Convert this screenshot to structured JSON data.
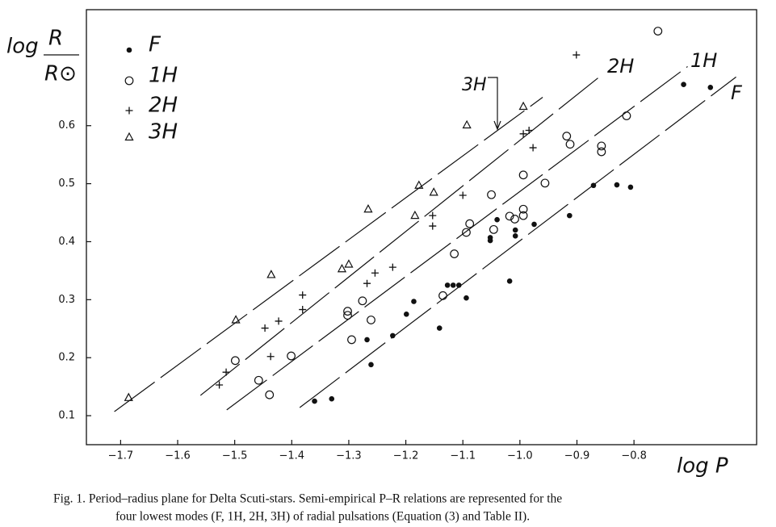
{
  "chart_data": {
    "type": "scatter",
    "xlabel": "log P",
    "ylabel": [
      "log",
      "R",
      "R⊙"
    ],
    "caption": [
      "Fig. 1.   Period–radius plane for Delta Scuti-stars. Semi-empirical P–R relations are represented for the",
      "four lowest modes (F, 1H, 2H, 3H) of radial pulsations (Equation (3) and Table II)."
    ],
    "annotation": "3H",
    "xlim": [
      -1.76,
      -0.585
    ],
    "ylim": [
      0.05,
      0.8
    ],
    "xticks": [
      {
        "value": -1.7,
        "label": "−1.7"
      },
      {
        "value": -1.6,
        "label": "−1.6"
      },
      {
        "value": -1.5,
        "label": "−1.5"
      },
      {
        "value": -1.4,
        "label": "−1.4"
      },
      {
        "value": -1.3,
        "label": "−1.3"
      },
      {
        "value": -1.2,
        "label": "−1.2"
      },
      {
        "value": -1.1,
        "label": "−1.1"
      },
      {
        "value": -1.0,
        "label": "−1.0"
      },
      {
        "value": -0.9,
        "label": "−0.9"
      },
      {
        "value": -0.8,
        "label": "−0.8"
      }
    ],
    "yticks": [
      0.1,
      0.2,
      0.3,
      0.4,
      0.5,
      0.6
    ],
    "grid": false,
    "legend": "upper left",
    "series": [
      {
        "name": "F",
        "color": "#111",
        "marker": "filled-circle",
        "x": [
          -1.36,
          -1.33,
          -1.268,
          -1.261,
          -1.223,
          -1.199,
          -1.186,
          -1.141,
          -1.127,
          -1.117,
          -1.107,
          -1.094,
          -1.052,
          -1.052,
          -1.04,
          -1.018,
          -1.008,
          -1.008,
          -0.975,
          -0.913,
          -0.871,
          -0.83,
          -0.806,
          -0.713,
          -0.666
        ],
        "values": [
          0.125,
          0.129,
          0.231,
          0.188,
          0.238,
          0.275,
          0.297,
          0.251,
          0.325,
          0.325,
          0.325,
          0.303,
          0.402,
          0.407,
          0.438,
          0.332,
          0.42,
          0.41,
          0.43,
          0.445,
          0.497,
          0.498,
          0.494,
          0.671,
          0.666
        ]
      },
      {
        "name": "1H",
        "color": "#111",
        "marker": "circle",
        "x": [
          -1.499,
          -1.458,
          -1.439,
          -1.401,
          -1.302,
          -1.302,
          -1.295,
          -1.276,
          -1.261,
          -1.135,
          -1.115,
          -1.094,
          -1.088,
          -1.05,
          -1.046,
          -1.018,
          -1.009,
          -0.994,
          -0.994,
          -0.994,
          -0.956,
          -0.918,
          -0.912,
          -0.857,
          -0.857,
          -0.813,
          -0.758
        ],
        "values": [
          0.195,
          0.161,
          0.136,
          0.203,
          0.28,
          0.273,
          0.231,
          0.298,
          0.265,
          0.307,
          0.379,
          0.416,
          0.431,
          0.481,
          0.421,
          0.444,
          0.439,
          0.456,
          0.445,
          0.515,
          0.501,
          0.582,
          0.568,
          0.565,
          0.555,
          0.617,
          0.763
        ]
      },
      {
        "name": "2H",
        "color": "#111",
        "marker": "plus",
        "x": [
          -1.527,
          -1.515,
          -1.447,
          -1.423,
          -1.437,
          -1.381,
          -1.381,
          -1.268,
          -1.254,
          -1.223,
          -1.153,
          -1.153,
          -1.1,
          -0.994,
          -0.984,
          -0.977,
          -0.901
        ],
        "values": [
          0.153,
          0.175,
          0.251,
          0.263,
          0.202,
          0.308,
          0.283,
          0.328,
          0.346,
          0.356,
          0.445,
          0.427,
          0.48,
          0.586,
          0.592,
          0.562,
          0.722
        ]
      },
      {
        "name": "3H",
        "color": "#111",
        "marker": "triangle",
        "x": [
          -1.686,
          -1.498,
          -1.436,
          -1.312,
          -1.3,
          -1.266,
          -1.184,
          -1.177,
          -1.151,
          -1.093,
          -0.994
        ],
        "values": [
          0.131,
          0.265,
          0.343,
          0.353,
          0.361,
          0.456,
          0.445,
          0.497,
          0.485,
          0.601,
          0.633
        ]
      }
    ],
    "fits": [
      {
        "label": "F",
        "x": [
          -1.386,
          -0.621
        ],
        "y": [
          0.114,
          0.684
        ]
      },
      {
        "label": "1H",
        "x": [
          -1.514,
          -0.706
        ],
        "y": [
          0.11,
          0.702
        ]
      },
      {
        "label": "2H",
        "x": [
          -1.56,
          -0.857
        ],
        "y": [
          0.135,
          0.687
        ]
      },
      {
        "label": "3H",
        "x": [
          -1.711,
          -0.96
        ],
        "y": [
          0.107,
          0.649
        ]
      }
    ]
  }
}
